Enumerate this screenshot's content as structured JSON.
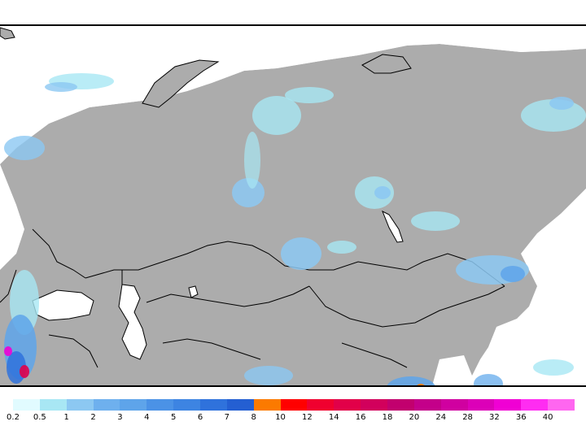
{
  "colors": {
    "land": "#acacac",
    "water": "#ffffff",
    "border": "#000000"
  },
  "legend": {
    "bins": [
      {
        "color": "#e1fbff",
        "label": "0.2"
      },
      {
        "color": "#a8e7f4",
        "label": "0.5"
      },
      {
        "color": "#8cc8f2",
        "label": "1"
      },
      {
        "color": "#6eb0ee",
        "label": "2"
      },
      {
        "color": "#5ea4ea",
        "label": "3"
      },
      {
        "color": "#4b92e6",
        "label": "4"
      },
      {
        "color": "#3d84e2",
        "label": "5"
      },
      {
        "color": "#2f72dc",
        "label": "6"
      },
      {
        "color": "#245fd2",
        "label": "7"
      },
      {
        "color": "#fb7a00",
        "label": "8"
      },
      {
        "color": "#ff0000",
        "label": "10"
      },
      {
        "color": "#f0002f",
        "label": "12"
      },
      {
        "color": "#e20049",
        "label": "14"
      },
      {
        "color": "#d2005c",
        "label": "16"
      },
      {
        "color": "#c2006e",
        "label": "18"
      },
      {
        "color": "#c4008a",
        "label": "20"
      },
      {
        "color": "#d000a0",
        "label": "24"
      },
      {
        "color": "#dc00b8",
        "label": "28"
      },
      {
        "color": "#f000d4",
        "label": "32"
      },
      {
        "color": "#ff2cf2",
        "label": "36"
      },
      {
        "color": "#ff66f0",
        "label": "40"
      }
    ]
  }
}
